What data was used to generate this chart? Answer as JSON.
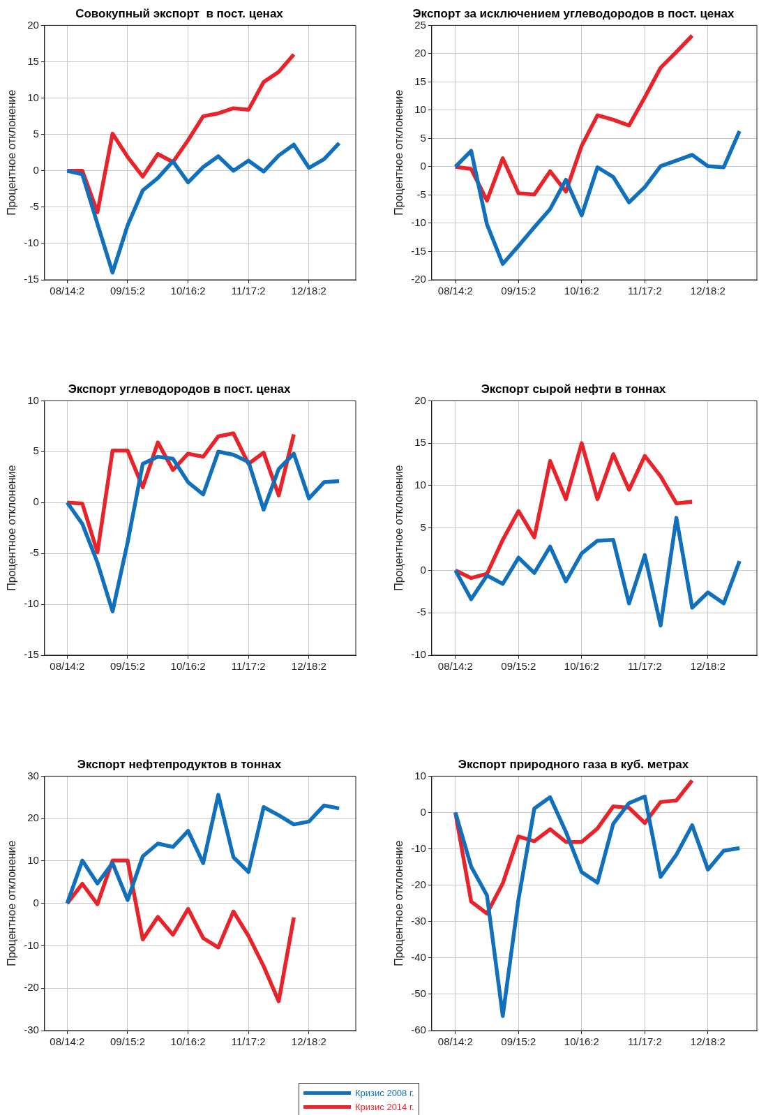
{
  "chart_data": [
    {
      "type": "line",
      "title": "Совокупный экспорт  в пост. ценах",
      "ylabel": "Процентное отклонение",
      "categories": [
        "08/14:2",
        null,
        null,
        null,
        "09/15:2",
        null,
        null,
        null,
        "10/16:2",
        null,
        null,
        null,
        "11/17:2",
        null,
        null,
        null,
        "12/18:2",
        null,
        null
      ],
      "ylim": [
        -15,
        20
      ],
      "yticks": [
        -15,
        -10,
        -5,
        0,
        5,
        10,
        15,
        20
      ],
      "grid": true,
      "legend": "bottom",
      "series": [
        {
          "name": "Кризис 2008 г.",
          "color": "#1170bb",
          "values": [
            0,
            -0.5,
            -7.3,
            -14,
            -7.5,
            -2.7,
            -1,
            1.3,
            -1.6,
            0.5,
            2,
            0,
            1.4,
            -0.1,
            2.1,
            3.6,
            0.4,
            1.6,
            3.8
          ]
        },
        {
          "name": "Кризис 2014 г.",
          "color": "#e8232a",
          "values": [
            0,
            0,
            -5.7,
            5.1,
            1.9,
            -0.8,
            2.3,
            1.2,
            4.2,
            7.5,
            7.9,
            8.6,
            8.4,
            12.2,
            13.6,
            16,
            null,
            null,
            null
          ]
        }
      ]
    },
    {
      "type": "line",
      "title": "Экспорт за исключением углеводородов в пост. ценах",
      "ylabel": "Процентное отклонение",
      "categories": [
        "08/14:2",
        null,
        null,
        null,
        "09/15:2",
        null,
        null,
        null,
        "10/16:2",
        null,
        null,
        null,
        "11/17:2",
        null,
        null,
        null,
        "12/18:2",
        null,
        null
      ],
      "ylim": [
        -20,
        25
      ],
      "yticks": [
        -20,
        -15,
        -10,
        -5,
        0,
        5,
        10,
        15,
        20,
        25
      ],
      "grid": true,
      "series": [
        {
          "color": "#1170bb",
          "values": [
            0,
            2.8,
            -10.2,
            -17.2,
            -14,
            -10.7,
            -7.5,
            -2.3,
            -8.6,
            -0.1,
            -1.8,
            -6.3,
            -3.6,
            0.1,
            1.1,
            2.1,
            0.1,
            -0.1,
            6.3
          ]
        },
        {
          "color": "#e8232a",
          "values": [
            0,
            -0.4,
            -6,
            1.5,
            -4.7,
            -4.9,
            -0.8,
            -4.4,
            3.7,
            9.1,
            8.3,
            7.3,
            12.3,
            17.5,
            20.3,
            23.2,
            null,
            null,
            null
          ]
        }
      ]
    },
    {
      "type": "line",
      "title": "Экспорт углеводородов в пост. ценах",
      "ylabel": "Процентное отклонение",
      "categories": [
        "08/14:2",
        null,
        null,
        null,
        "09/15:2",
        null,
        null,
        null,
        "10/16:2",
        null,
        null,
        null,
        "11/17:2",
        null,
        null,
        null,
        "12/18:2",
        null,
        null
      ],
      "ylim": [
        -15,
        10
      ],
      "yticks": [
        -15,
        -10,
        -5,
        0,
        5,
        10
      ],
      "grid": true,
      "series": [
        {
          "color": "#1170bb",
          "values": [
            0,
            -2.1,
            -5.9,
            -10.7,
            -3.9,
            3.8,
            4.5,
            4.3,
            2,
            0.8,
            5,
            4.7,
            4,
            -0.7,
            3.3,
            4.8,
            0.4,
            2,
            2.1
          ]
        },
        {
          "color": "#e8232a",
          "values": [
            0,
            -0.1,
            -4.9,
            5.1,
            5.1,
            1.5,
            5.9,
            3.2,
            4.8,
            4.5,
            6.5,
            6.8,
            3.8,
            4.9,
            0.7,
            6.7,
            null,
            null,
            null
          ]
        }
      ]
    },
    {
      "type": "line",
      "title": "Экспорт сырой нефти в тоннах",
      "ylabel": "Процентное отклонение",
      "categories": [
        "08/14:2",
        null,
        null,
        null,
        "09/15:2",
        null,
        null,
        null,
        "10/16:2",
        null,
        null,
        null,
        "11/17:2",
        null,
        null,
        null,
        "12/18:2",
        null,
        null
      ],
      "ylim": [
        -10,
        20
      ],
      "yticks": [
        -10,
        -5,
        0,
        5,
        10,
        15,
        20
      ],
      "grid": true,
      "series": [
        {
          "color": "#1170bb",
          "values": [
            0,
            -3.4,
            -0.6,
            -1.6,
            1.5,
            -0.3,
            2.8,
            -1.3,
            2,
            3.5,
            3.6,
            -3.9,
            1.8,
            -6.5,
            6.2,
            -4.4,
            -2.6,
            -3.9,
            1.1
          ]
        },
        {
          "color": "#e8232a",
          "values": [
            0,
            -0.9,
            -0.4,
            3.6,
            7,
            3.9,
            12.9,
            8.4,
            15,
            8.4,
            13.7,
            9.5,
            13.5,
            11.1,
            7.9,
            8.1,
            null,
            null,
            null
          ]
        }
      ]
    },
    {
      "type": "line",
      "title": "Экспорт нефтепродуктов в тоннах",
      "ylabel": "Процентное отклонение",
      "categories": [
        "08/14:2",
        null,
        null,
        null,
        "09/15:2",
        null,
        null,
        null,
        "10/16:2",
        null,
        null,
        null,
        "11/17:2",
        null,
        null,
        null,
        "12/18:2",
        null,
        null
      ],
      "ylim": [
        -30,
        30
      ],
      "yticks": [
        -30,
        -20,
        -10,
        0,
        10,
        20,
        30
      ],
      "grid": true,
      "series": [
        {
          "color": "#1170bb",
          "values": [
            0,
            10.1,
            4.7,
            9.5,
            0.8,
            11.1,
            14.1,
            13.3,
            17.1,
            9.5,
            25.6,
            10.9,
            7.4,
            22.7,
            20.8,
            18.6,
            19.3,
            23.1,
            22.4
          ]
        },
        {
          "color": "#e8232a",
          "values": [
            0,
            4.6,
            -0.2,
            10.1,
            10.1,
            -8.5,
            -3.2,
            -7.4,
            -1.3,
            -8.2,
            -10.4,
            -1.9,
            -7.7,
            -14.8,
            -23.1,
            -3.3,
            null,
            null,
            null
          ]
        }
      ]
    },
    {
      "type": "line",
      "title": "Экспорт природного газа в куб. метрах",
      "ylabel": "Процентное отклонение",
      "categories": [
        "08/14:2",
        null,
        null,
        null,
        "09/15:2",
        null,
        null,
        null,
        "10/16:2",
        null,
        null,
        null,
        "11/17:2",
        null,
        null,
        null,
        "12/18:2",
        null,
        null
      ],
      "ylim": [
        -60,
        10
      ],
      "yticks": [
        -60,
        -50,
        -40,
        -30,
        -20,
        -10,
        0,
        10
      ],
      "grid": true,
      "series": [
        {
          "color": "#1170bb",
          "values": [
            0,
            -14.9,
            -22.8,
            -56,
            -23.8,
            1.1,
            4.2,
            -5.3,
            -16.4,
            -19.3,
            -3.1,
            2.6,
            4.4,
            -17.7,
            -11.6,
            -3.5,
            -15.7,
            -10.5,
            -9.8
          ]
        },
        {
          "color": "#e8232a",
          "values": [
            0,
            -24.5,
            -27.8,
            -19.5,
            -6.6,
            -7.9,
            -4.6,
            -8.1,
            -8.1,
            -4.4,
            1.7,
            1.3,
            -2.9,
            2.9,
            3.3,
            8.8,
            null,
            null,
            null
          ]
        }
      ]
    }
  ]
}
